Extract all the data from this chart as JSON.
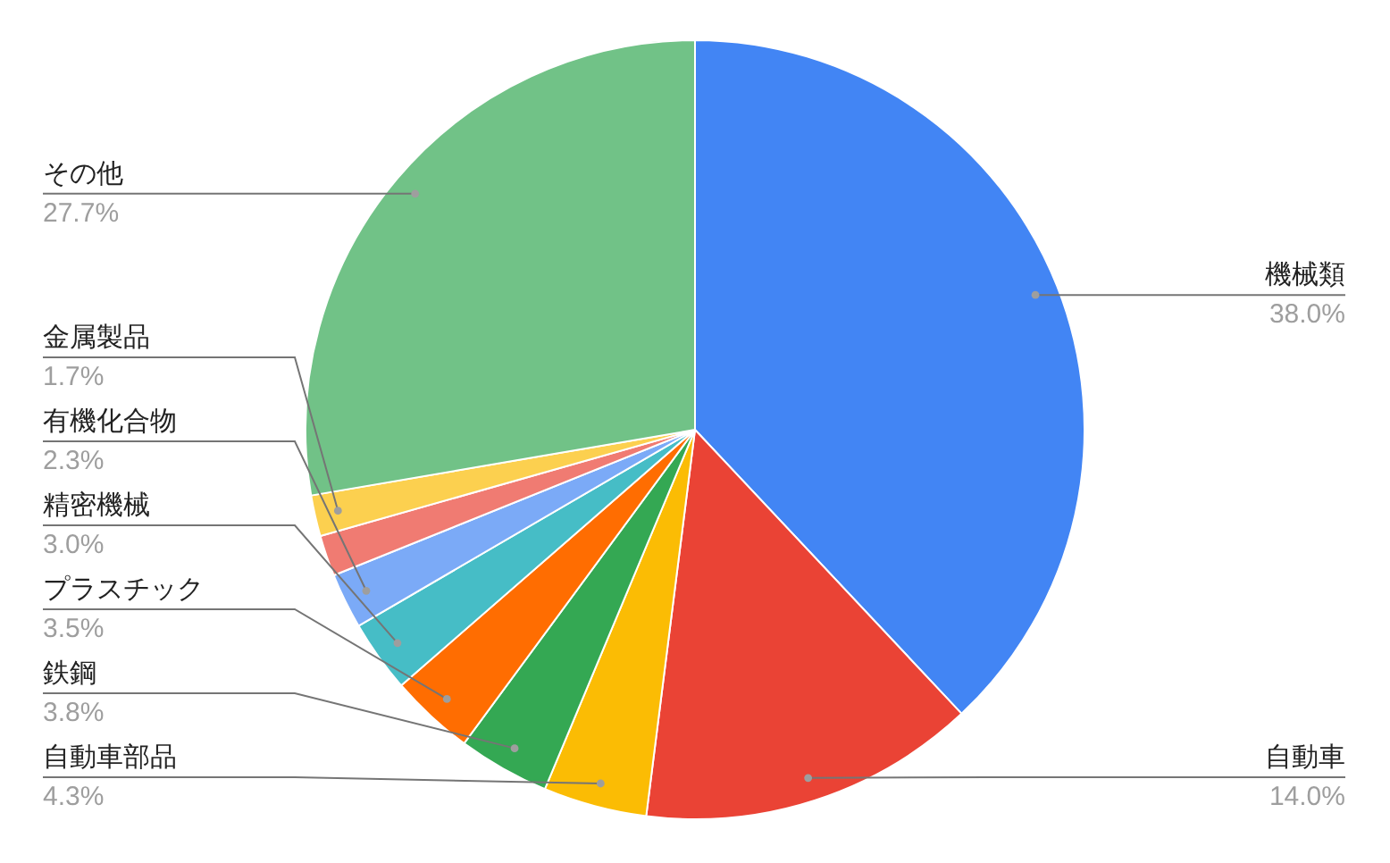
{
  "chart_data": {
    "type": "pie",
    "categories": [
      "機械類",
      "自動車",
      "自動車部品",
      "鉄鋼",
      "プラスチック",
      "精密機械",
      "有機化合物",
      null,
      "金属製品",
      "その他"
    ],
    "values": [
      38.0,
      14.0,
      4.3,
      3.8,
      3.5,
      3.0,
      2.3,
      1.7,
      1.7,
      27.7
    ],
    "value_labels": [
      "38.0%",
      "14.0%",
      "4.3%",
      "3.8%",
      "3.5%",
      "3.0%",
      "2.3%",
      null,
      "1.7%",
      "27.7%"
    ],
    "colors": [
      "#4285f4",
      "#ea4335",
      "#fbbc04",
      "#34a853",
      "#ff6d01",
      "#46bdc6",
      "#7baaf7",
      "#f07b72",
      "#fcd04f",
      "#71c287"
    ],
    "legend": false
  }
}
